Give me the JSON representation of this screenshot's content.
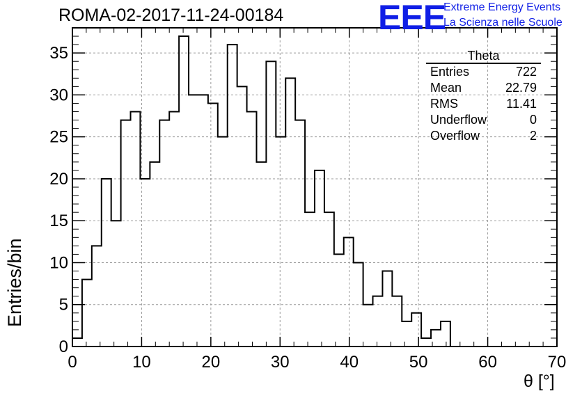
{
  "page_title": "ROMA-02-2017-11-24-00184",
  "logo": {
    "mark": "EEE",
    "line1": "Extreme Energy Events",
    "line2": "La Scienza nelle Scuole",
    "color": "#0f1ee6"
  },
  "chart_data": {
    "type": "bar",
    "histogram": true,
    "title": "ROMA-02-2017-11-24-00184",
    "xlabel": "θ [°]",
    "ylabel": "Entries/bin",
    "xlim": [
      0,
      70
    ],
    "ylim": [
      0,
      38
    ],
    "xticks": [
      0,
      10,
      20,
      30,
      40,
      50,
      60,
      70
    ],
    "yticks": [
      0,
      5,
      10,
      15,
      20,
      25,
      30,
      35
    ],
    "grid": true,
    "bin_width": 1.4,
    "bin_start": 0,
    "values": [
      1,
      8,
      12,
      20,
      15,
      27,
      28,
      20,
      22,
      27,
      28,
      37,
      30,
      30,
      29,
      25,
      36,
      31,
      28,
      22,
      34,
      25,
      32,
      27,
      16,
      21,
      16,
      11,
      13,
      10,
      5,
      6,
      9,
      6,
      3,
      4,
      1,
      2,
      3,
      0,
      0,
      0,
      0,
      0,
      0,
      0,
      0,
      0,
      0,
      0
    ],
    "stats": {
      "name": "Theta",
      "rows": [
        {
          "label": "Entries",
          "value": "722"
        },
        {
          "label": "Mean",
          "value": "22.79"
        },
        {
          "label": "RMS",
          "value": "11.41"
        },
        {
          "label": "Underflow",
          "value": "0"
        },
        {
          "label": "Overflow",
          "value": "2"
        }
      ]
    }
  }
}
